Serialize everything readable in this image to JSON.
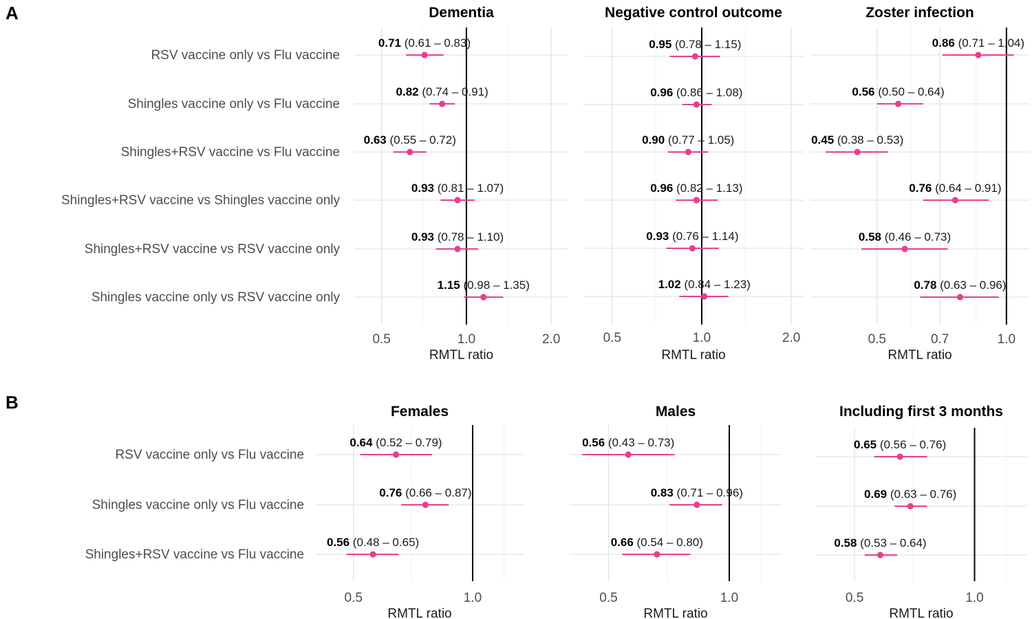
{
  "colors": {
    "point": "#e83e8c",
    "reference_line": "#000000",
    "grid": "#e3e3e3"
  },
  "chart_data": [
    {
      "type": "forest",
      "panel": "A",
      "title": "Dementia",
      "xlabel": "RMTL ratio",
      "x_scale": "log",
      "xlim": [
        0.4,
        2.3
      ],
      "xticks": [
        "0.5",
        "1.0",
        "2.0"
      ],
      "reference_x": 1.0,
      "rows": [
        {
          "label": "RSV vaccine only vs Flu vaccine",
          "est": "0.71",
          "lo": "0.61",
          "hi": "0.83"
        },
        {
          "label": "Shingles vaccine only vs Flu vaccine",
          "est": "0.82",
          "lo": "0.74",
          "hi": "0.91"
        },
        {
          "label": "Shingles+RSV vaccine vs Flu vaccine",
          "est": "0.63",
          "lo": "0.55",
          "hi": "0.72"
        },
        {
          "label": "Shingles+RSV vaccine vs Shingles vaccine only",
          "est": "0.93",
          "lo": "0.81",
          "hi": "1.07"
        },
        {
          "label": "Shingles+RSV vaccine vs RSV vaccine only",
          "est": "0.93",
          "lo": "0.78",
          "hi": "1.10"
        },
        {
          "label": "Shingles vaccine only vs RSV vaccine only",
          "est": "1.15",
          "lo": "0.98",
          "hi": "1.35"
        }
      ]
    },
    {
      "type": "forest",
      "panel": "A",
      "title": "Negative control outcome",
      "xlabel": "RMTL ratio",
      "x_scale": "log",
      "xlim": [
        0.4,
        2.2
      ],
      "xticks": [
        "0.5",
        "1.0",
        "2.0"
      ],
      "reference_x": 1.0,
      "rows": [
        {
          "label": "RSV vaccine only vs Flu vaccine",
          "est": "0.95",
          "lo": "0.78",
          "hi": "1.15"
        },
        {
          "label": "Shingles vaccine only vs Flu vaccine",
          "est": "0.96",
          "lo": "0.86",
          "hi": "1.08"
        },
        {
          "label": "Shingles+RSV vaccine vs Flu vaccine",
          "est": "0.90",
          "lo": "0.77",
          "hi": "1.05"
        },
        {
          "label": "Shingles+RSV vaccine vs Shingles vaccine only",
          "est": "0.96",
          "lo": "0.82",
          "hi": "1.13"
        },
        {
          "label": "Shingles+RSV vaccine vs RSV vaccine only",
          "est": "0.93",
          "lo": "0.76",
          "hi": "1.14"
        },
        {
          "label": "Shingles vaccine only vs RSV vaccine only",
          "est": "1.02",
          "lo": "0.84",
          "hi": "1.23"
        }
      ]
    },
    {
      "type": "forest",
      "panel": "A",
      "title": "Zoster infection",
      "xlabel": "RMTL ratio",
      "x_scale": "log",
      "xlim": [
        0.35,
        1.13
      ],
      "xticks": [
        "0.5",
        "0.7",
        "1.0"
      ],
      "reference_x": 1.0,
      "rows": [
        {
          "label": "RSV vaccine only vs Flu vaccine",
          "est": "0.86",
          "lo": "0.71",
          "hi": "1.04"
        },
        {
          "label": "Shingles vaccine only vs Flu vaccine",
          "est": "0.56",
          "lo": "0.50",
          "hi": "0.64"
        },
        {
          "label": "Shingles+RSV vaccine vs Flu vaccine",
          "est": "0.45",
          "lo": "0.38",
          "hi": "0.53"
        },
        {
          "label": "Shingles+RSV vaccine vs Shingles vaccine only",
          "est": "0.76",
          "lo": "0.64",
          "hi": "0.91"
        },
        {
          "label": "Shingles+RSV vaccine vs RSV vaccine only",
          "est": "0.58",
          "lo": "0.46",
          "hi": "0.73"
        },
        {
          "label": "Shingles vaccine only vs RSV vaccine only",
          "est": "0.78",
          "lo": "0.63",
          "hi": "0.96"
        }
      ]
    },
    {
      "type": "forest",
      "panel": "B",
      "title": "Females",
      "xlabel": "RMTL ratio",
      "x_scale": "log",
      "xlim": [
        0.4,
        1.35
      ],
      "xticks": [
        "0.5",
        "1.0"
      ],
      "reference_x": 1.0,
      "rows": [
        {
          "label": "RSV vaccine only vs Flu vaccine",
          "est": "0.64",
          "lo": "0.52",
          "hi": "0.79"
        },
        {
          "label": "Shingles vaccine only vs Flu vaccine",
          "est": "0.76",
          "lo": "0.66",
          "hi": "0.87"
        },
        {
          "label": "Shingles+RSV vaccine vs Flu vaccine",
          "est": "0.56",
          "lo": "0.48",
          "hi": "0.65"
        }
      ]
    },
    {
      "type": "forest",
      "panel": "B",
      "title": "Males",
      "xlabel": "RMTL ratio",
      "x_scale": "log",
      "xlim": [
        0.4,
        1.35
      ],
      "xticks": [
        "0.5",
        "1.0"
      ],
      "reference_x": 1.0,
      "rows": [
        {
          "label": "RSV vaccine only vs Flu vaccine",
          "est": "0.56",
          "lo": "0.43",
          "hi": "0.73"
        },
        {
          "label": "Shingles vaccine only vs Flu vaccine",
          "est": "0.83",
          "lo": "0.71",
          "hi": "0.96"
        },
        {
          "label": "Shingles+RSV vaccine vs Flu vaccine",
          "est": "0.66",
          "lo": "0.54",
          "hi": "0.80"
        }
      ]
    },
    {
      "type": "forest",
      "panel": "B",
      "title": "Including first 3 months",
      "xlabel": "RMTL ratio",
      "x_scale": "log",
      "xlim": [
        0.4,
        1.35
      ],
      "xticks": [
        "0.5",
        "1.0"
      ],
      "reference_x": 1.0,
      "rows": [
        {
          "label": "RSV vaccine only vs Flu vaccine",
          "est": "0.65",
          "lo": "0.56",
          "hi": "0.76"
        },
        {
          "label": "Shingles vaccine only vs Flu vaccine",
          "est": "0.69",
          "lo": "0.63",
          "hi": "0.76"
        },
        {
          "label": "Shingles+RSV vaccine vs Flu vaccine",
          "est": "0.58",
          "lo": "0.53",
          "hi": "0.64"
        }
      ]
    }
  ]
}
